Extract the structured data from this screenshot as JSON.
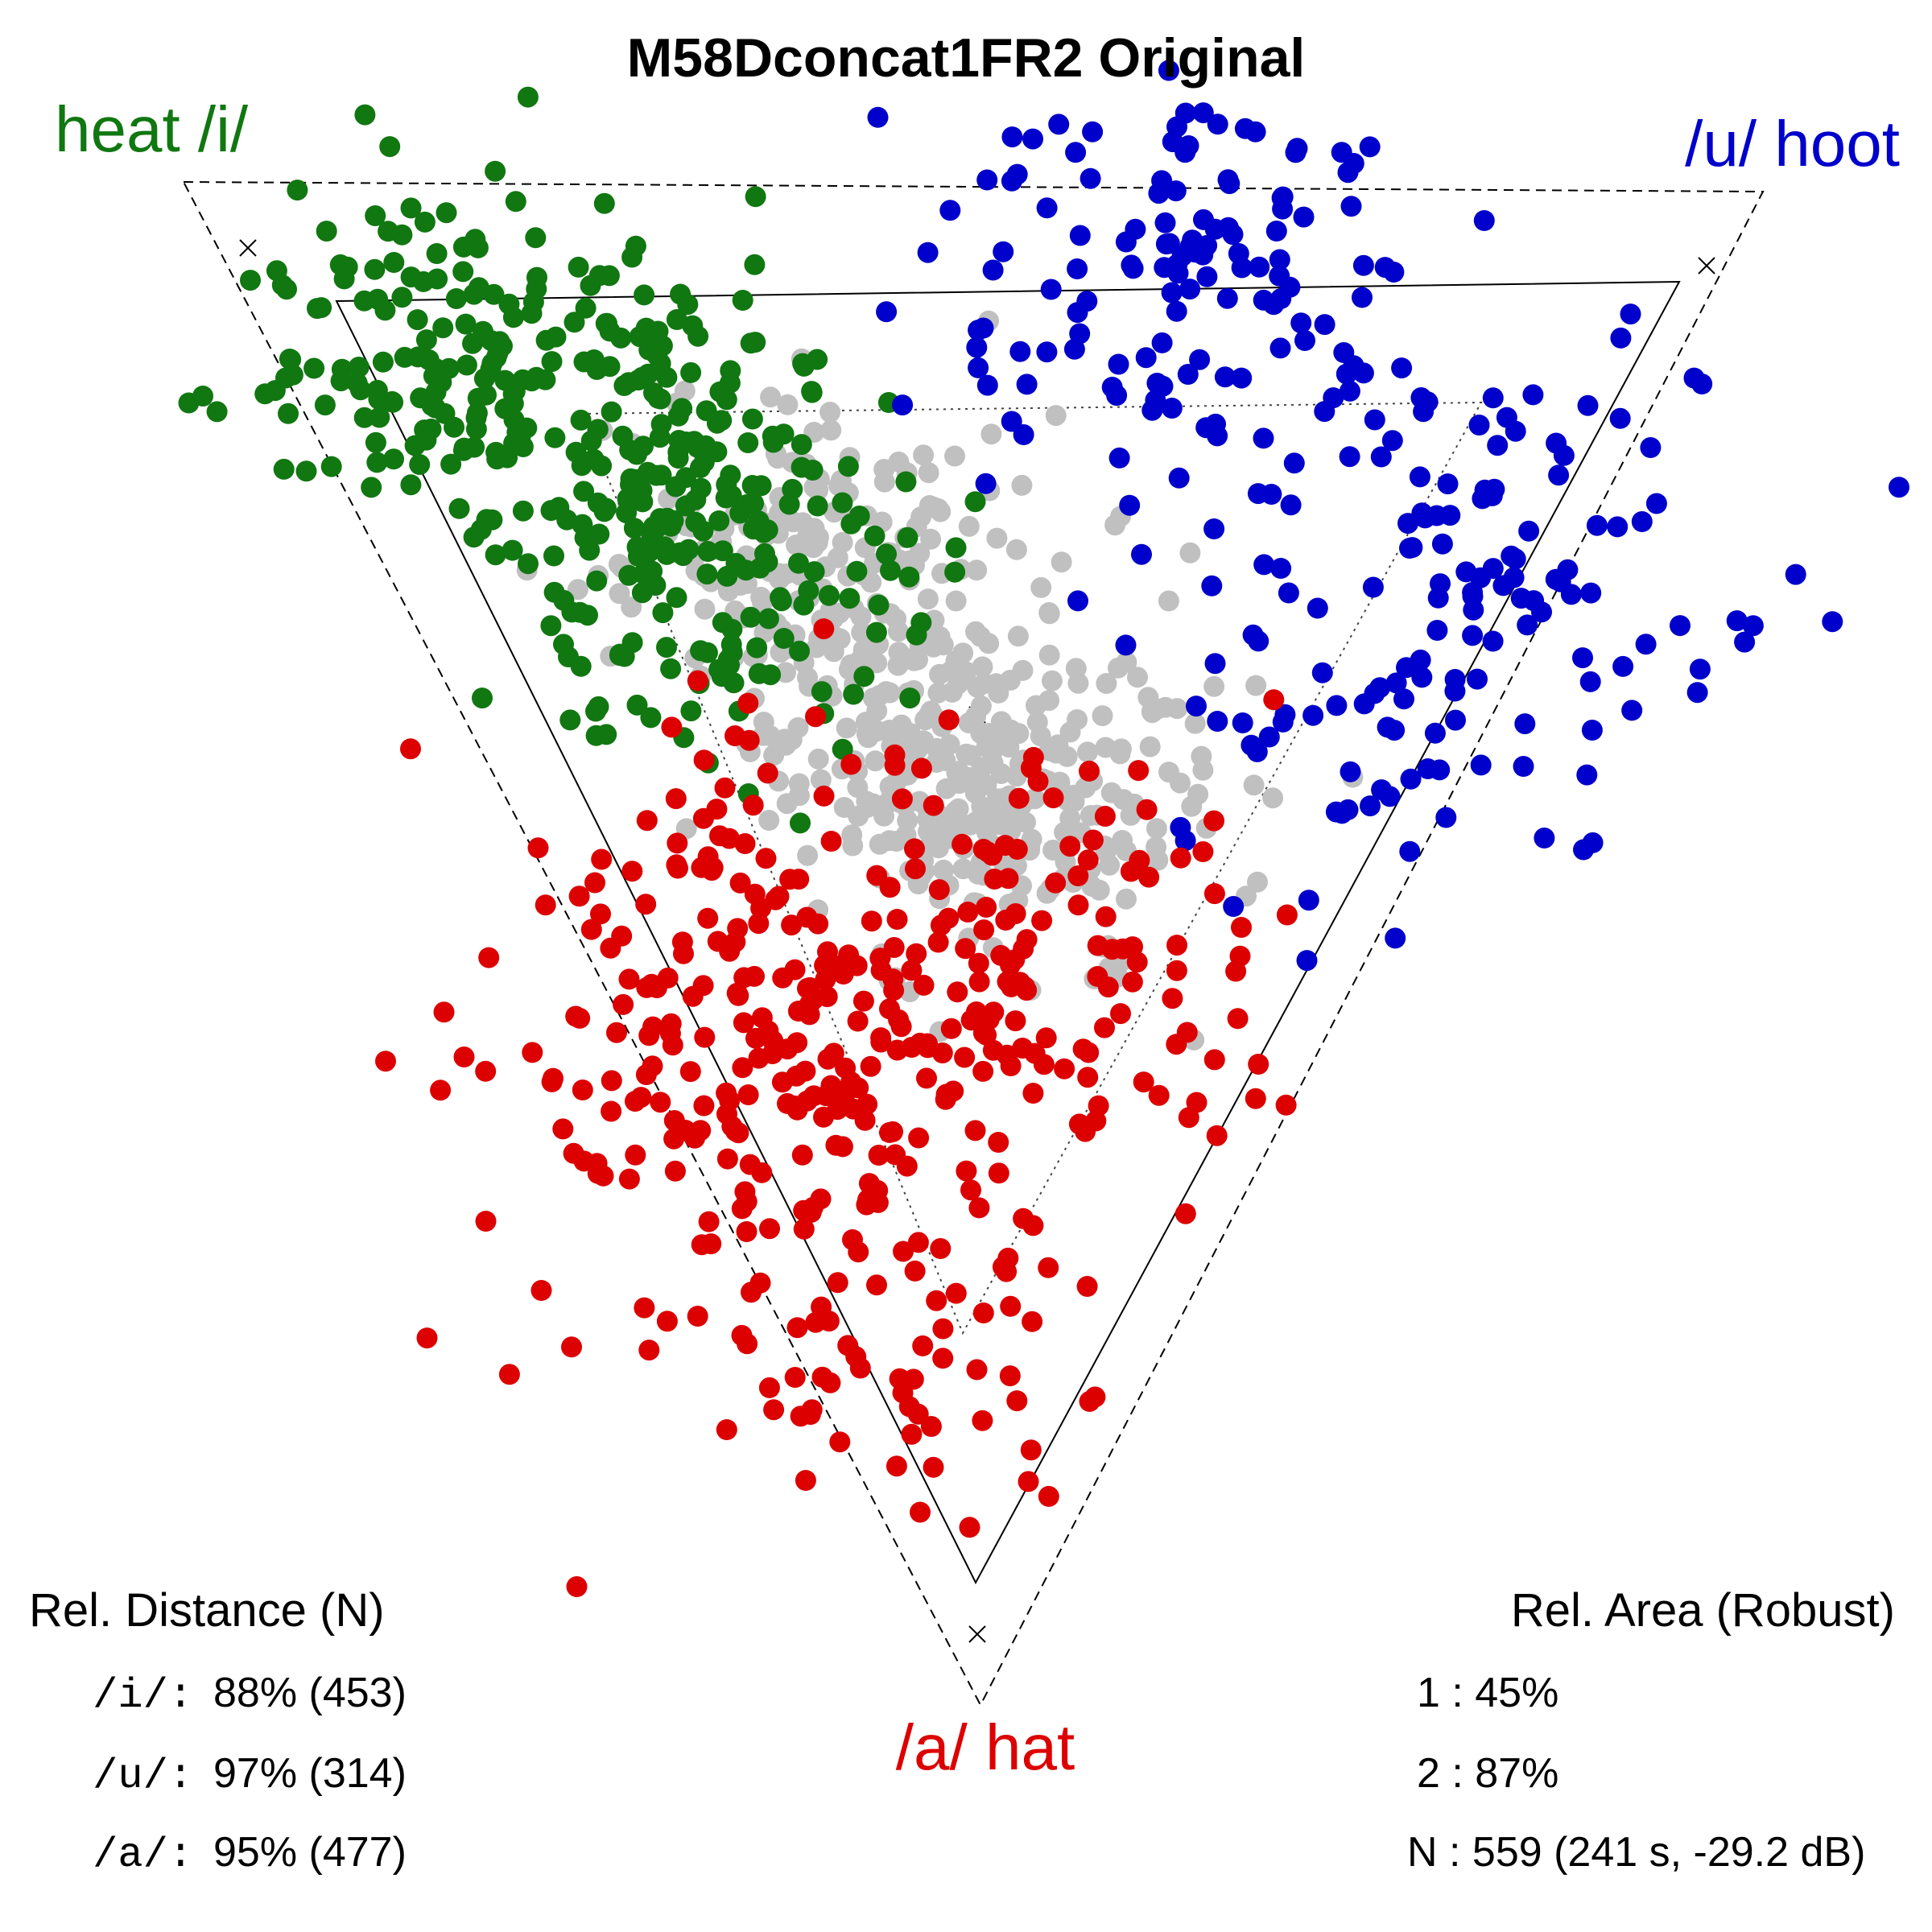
{
  "chart_data": {
    "type": "scatter",
    "title": "M58Dconcat1FR2 Original",
    "corners": {
      "i": {
        "label": "heat /i/",
        "color": "#117711"
      },
      "u": {
        "label": "/u/ hoot",
        "color": "#0000cc"
      },
      "a": {
        "label": "/a/ hat",
        "color": "#dd0000"
      }
    },
    "series": [
      {
        "name": "/i/",
        "color": "#117711",
        "count": 453
      },
      {
        "name": "/u/",
        "color": "#0000cc",
        "count": 314
      },
      {
        "name": "/a/",
        "color": "#dd0000",
        "count": 477
      },
      {
        "color": "#c0c0c0",
        "count": 559
      }
    ],
    "rel_distance": {
      "heading": "Rel. Distance (N)",
      "rows": [
        {
          "label": "/i/:",
          "value": "88% (453)"
        },
        {
          "label": "/u/:",
          "value": "97% (314)"
        },
        {
          "label": "/a/:",
          "value": "95% (477)"
        }
      ]
    },
    "rel_area": {
      "heading": "Rel. Area (Robust)",
      "rows": [
        {
          "label": "1 : 45%"
        },
        {
          "label": "2 : 87%"
        },
        {
          "label": "N : 559 (241 s, -29.2 dB)"
        }
      ]
    }
  }
}
